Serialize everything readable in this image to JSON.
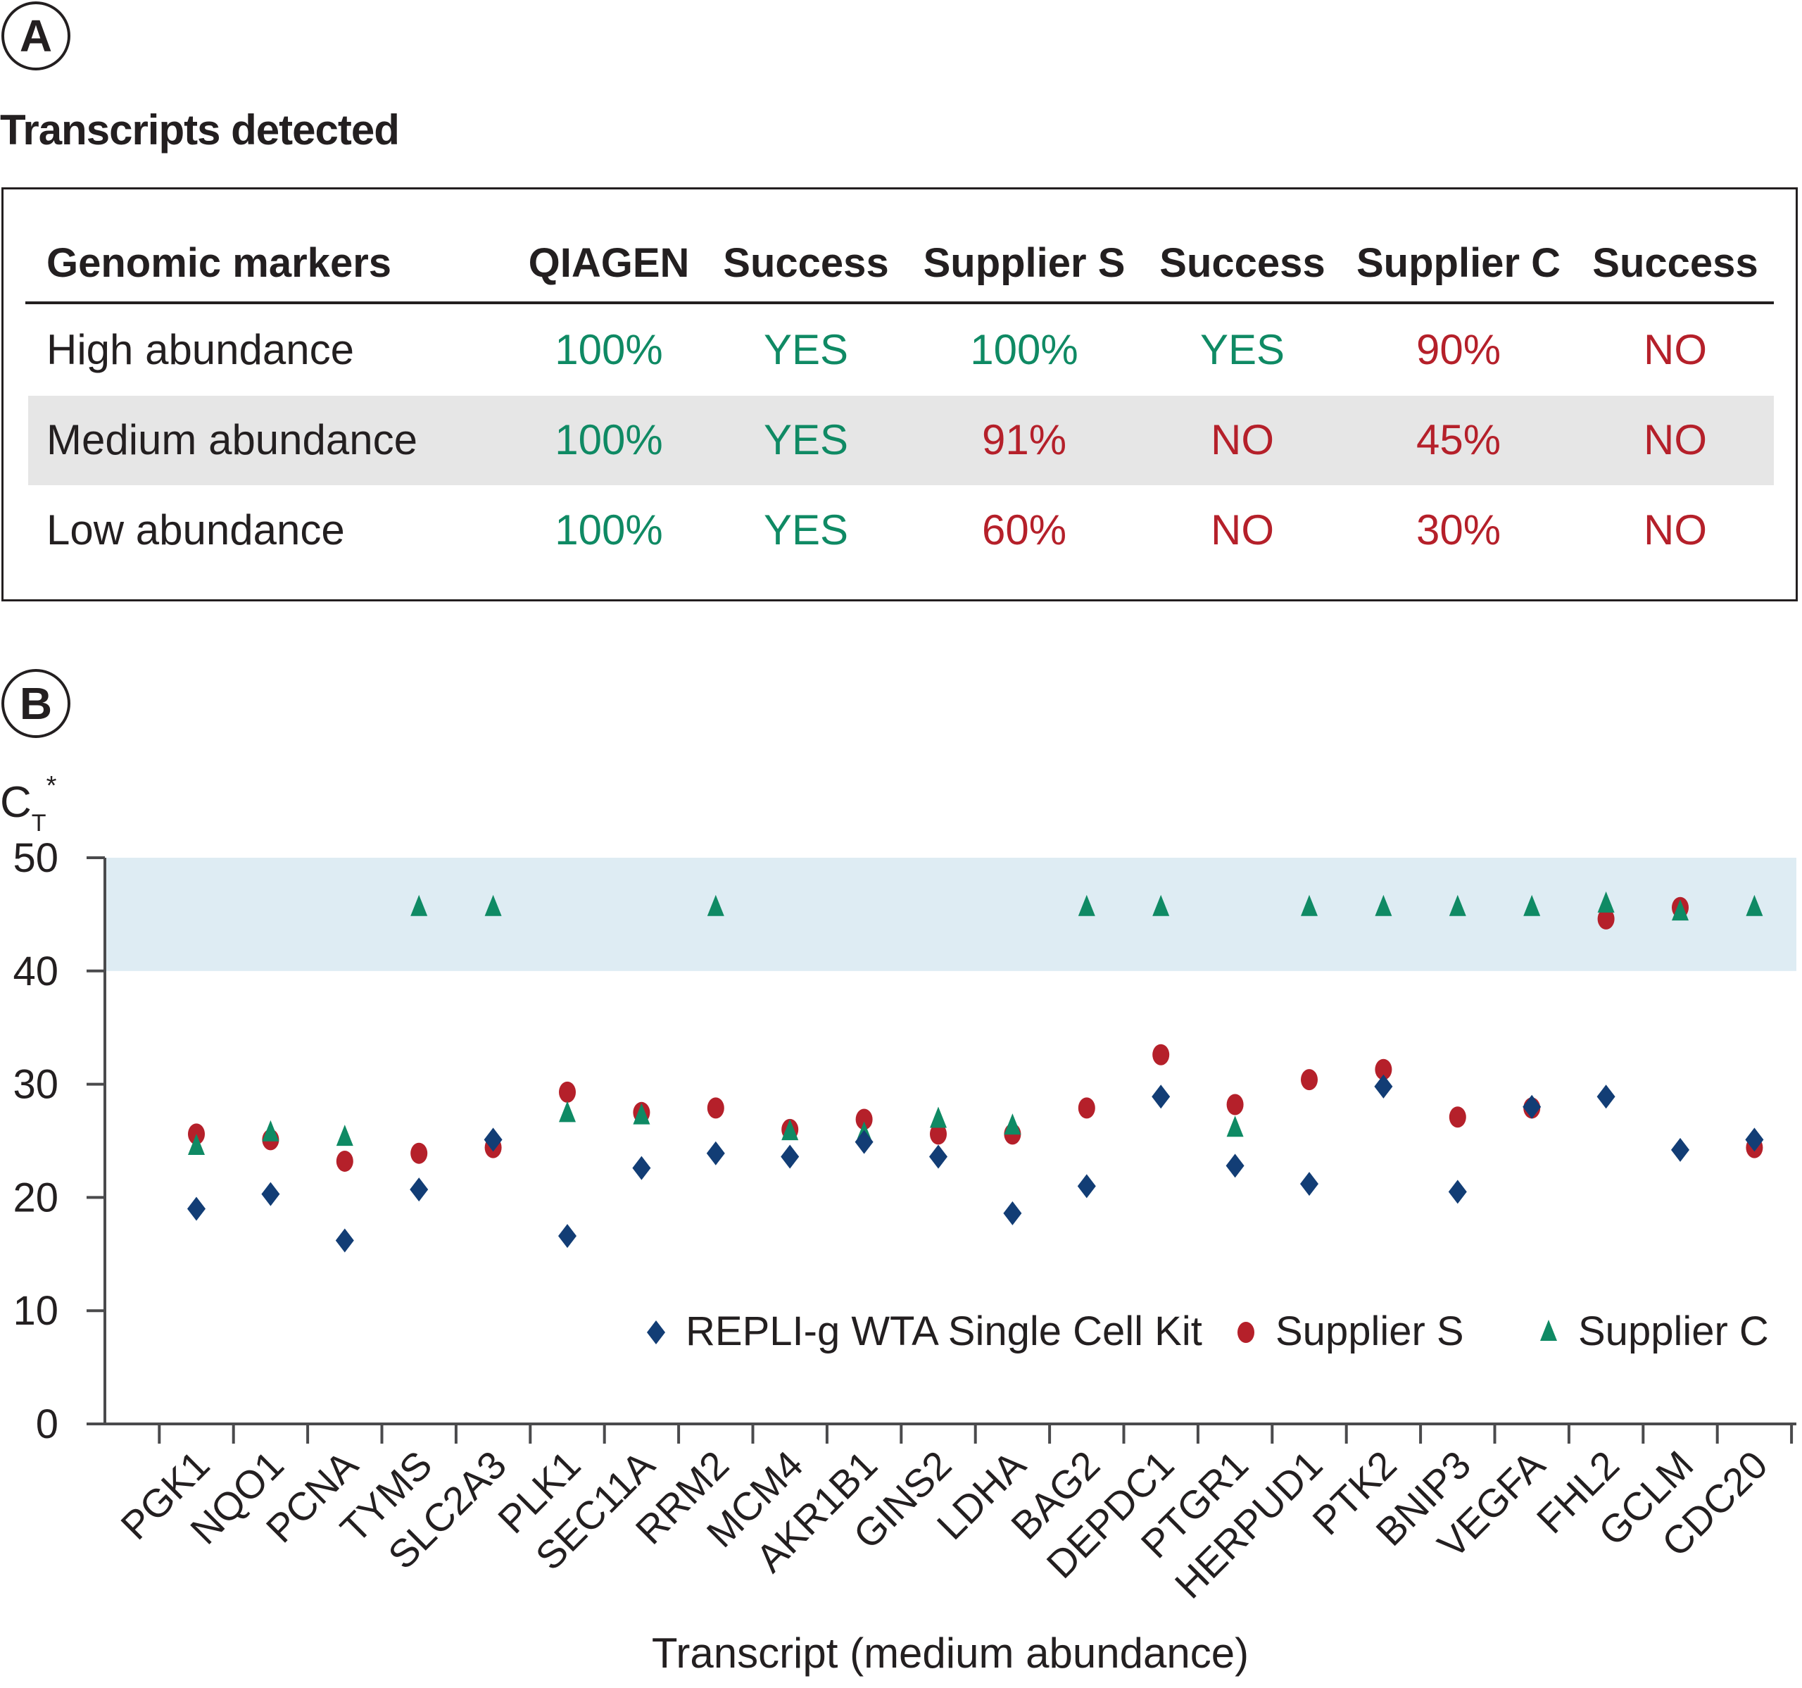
{
  "panel_a": {
    "badge": "A",
    "title": "Transcripts detected",
    "headers": [
      "Genomic markers",
      "QIAGEN",
      "Success",
      "Supplier S",
      "Success",
      "Supplier C",
      "Success"
    ],
    "rows": [
      {
        "label": "High abundance",
        "values": [
          "100%",
          "YES",
          "100%",
          "YES",
          "90%",
          "NO"
        ],
        "status": [
          "good",
          "good",
          "good",
          "good",
          "bad",
          "bad"
        ]
      },
      {
        "label": "Medium abundance",
        "values": [
          "100%",
          "YES",
          "91%",
          "NO",
          "45%",
          "NO"
        ],
        "status": [
          "good",
          "good",
          "bad",
          "bad",
          "bad",
          "bad"
        ]
      },
      {
        "label": "Low abundance",
        "values": [
          "100%",
          "YES",
          "60%",
          "NO",
          "30%",
          "NO"
        ],
        "status": [
          "good",
          "good",
          "bad",
          "bad",
          "bad",
          "bad"
        ]
      }
    ],
    "colors": {
      "good": "#0f8a64",
      "bad": "#b5202a",
      "shade": "#e6e6e6"
    }
  },
  "panel_b": {
    "badge": "B"
  },
  "chart_data": {
    "type": "scatter",
    "title": "",
    "ylabel": "CT*",
    "ylabel_main": "C",
    "ylabel_sub": "T",
    "ylabel_sup": "*",
    "xlabel": "Transcript (medium abundance)",
    "ylim": [
      0,
      50
    ],
    "yticks": [
      0,
      10,
      20,
      30,
      40,
      50
    ],
    "shaded_band": {
      "from": 40,
      "to": 50,
      "color": "#deecf3"
    },
    "grid": false,
    "legend_position": "lower-right",
    "categories": [
      "PGK1",
      "NQO1",
      "PCNA",
      "TYMS",
      "SLC2A3",
      "PLK1",
      "SEC11A",
      "RRM2",
      "MCM4",
      "AKR1B1",
      "GINS2",
      "LDHA",
      "BAG2",
      "DEPDC1",
      "PTGR1",
      "HERPUD1",
      "PTK2",
      "BNIP3",
      "VEGFA",
      "FHL2",
      "GCLM",
      "CDC20"
    ],
    "series": [
      {
        "name": "REPLI-g WTA Single Cell Kit",
        "marker": "diamond",
        "color": "#123d75",
        "values": [
          19.0,
          20.3,
          16.2,
          20.7,
          25.1,
          16.6,
          22.6,
          23.9,
          23.6,
          24.9,
          23.6,
          18.6,
          21.0,
          28.9,
          22.8,
          21.2,
          29.8,
          20.5,
          28.0,
          28.9,
          24.2,
          25.1
        ]
      },
      {
        "name": "Supplier S",
        "marker": "circle",
        "color": "#b5202a",
        "values": [
          25.6,
          25.1,
          23.2,
          23.9,
          24.4,
          29.3,
          27.5,
          27.9,
          26.0,
          26.9,
          25.6,
          25.6,
          27.9,
          32.6,
          28.2,
          30.4,
          31.3,
          27.1,
          27.9,
          44.6,
          45.6,
          24.4
        ]
      },
      {
        "name": "Supplier C",
        "marker": "triangle",
        "color": "#0f8a64",
        "values": [
          24.5,
          25.7,
          25.3,
          45.6,
          45.6,
          27.4,
          27.2,
          45.6,
          25.8,
          25.6,
          26.9,
          26.3,
          45.6,
          45.6,
          26.1,
          45.6,
          45.6,
          45.6,
          45.6,
          45.9,
          45.2,
          45.6
        ]
      }
    ]
  }
}
